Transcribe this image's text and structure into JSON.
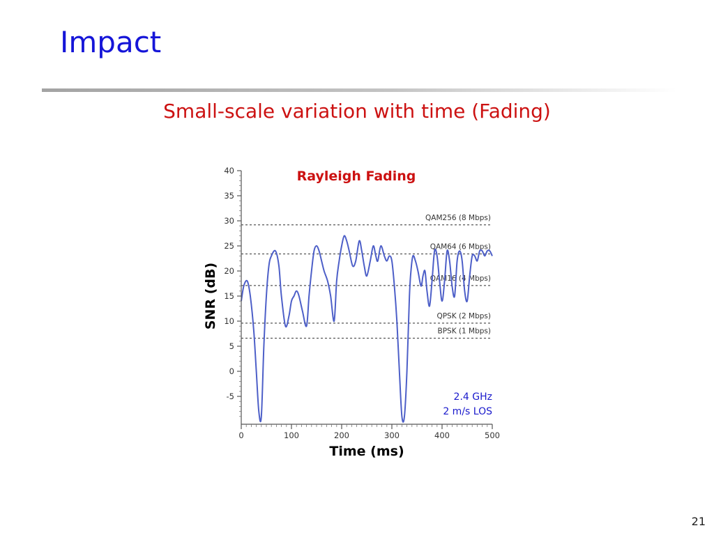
{
  "slide": {
    "title": "Impact",
    "subtitle": "Small-scale variation with time (Fading)",
    "page_number": "21"
  },
  "colors": {
    "title": "#1515d8",
    "subtitle": "#cc1111",
    "series": "#4d5fc8",
    "annotation": "#1a1acc"
  },
  "chart_data": {
    "type": "line",
    "title": "Rayleigh Fading",
    "xlabel": "Time (ms)",
    "ylabel": "SNR (dB)",
    "xlim": [
      0,
      500
    ],
    "ylim": [
      -10,
      40
    ],
    "xticks": [
      0,
      100,
      200,
      300,
      400,
      500
    ],
    "yticks": [
      40,
      35,
      30,
      25,
      20,
      15,
      10,
      5,
      0,
      -5
    ],
    "thresholds": [
      {
        "label": "QAM256 (8 Mbps)",
        "y": 29.2
      },
      {
        "label": "QAM64 (6 Mbps)",
        "y": 23.4
      },
      {
        "label": "QAM16 (4 Mbps)",
        "y": 17.1
      },
      {
        "label": "QPSK (2 Mbps)",
        "y": 9.6
      },
      {
        "label": "BPSK (1 Mbps)",
        "y": 6.6
      }
    ],
    "annotations": [
      "2.4 GHz",
      "2 m/s LOS"
    ],
    "series": [
      {
        "x": [
          0,
          5,
          12,
          18,
          25,
          30,
          35,
          40,
          45,
          50,
          55,
          60,
          68,
          75,
          80,
          88,
          95,
          100,
          105,
          110,
          115,
          122,
          130,
          135,
          140,
          145,
          150,
          155,
          160,
          165,
          172,
          178,
          185,
          190,
          195,
          200,
          205,
          210,
          215,
          222,
          228,
          235,
          240,
          245,
          250,
          257,
          263,
          268,
          272,
          278,
          285,
          290,
          295,
          300,
          305,
          310,
          315,
          320,
          325,
          330,
          335,
          338,
          342,
          347,
          352,
          358,
          362,
          366,
          370,
          375,
          380,
          385,
          390,
          395,
          400,
          405,
          410,
          415,
          420,
          425,
          430,
          435,
          440,
          445,
          450,
          455,
          460,
          465,
          470,
          475,
          480,
          485,
          490,
          495,
          500
        ],
        "y": [
          14,
          17,
          18,
          15,
          8,
          0,
          -8,
          -9,
          5,
          15,
          21,
          23,
          24,
          21,
          15,
          9,
          11,
          14,
          15,
          16,
          15,
          12,
          9,
          15,
          20,
          24,
          25,
          24,
          22,
          20,
          18,
          15,
          10,
          18,
          22,
          25,
          27,
          26,
          24,
          21,
          22,
          26,
          24,
          21,
          19,
          22,
          25,
          23,
          22,
          25,
          23,
          22,
          23,
          22,
          17,
          10,
          0,
          -9,
          -9,
          0,
          15,
          20,
          23,
          22,
          20,
          17,
          19,
          20,
          16,
          13,
          18,
          24,
          23,
          18,
          14,
          18,
          24,
          22,
          17,
          15,
          22,
          24,
          22,
          16,
          14,
          19,
          23,
          23,
          22,
          24,
          24,
          23,
          24,
          24,
          23
        ]
      }
    ]
  }
}
